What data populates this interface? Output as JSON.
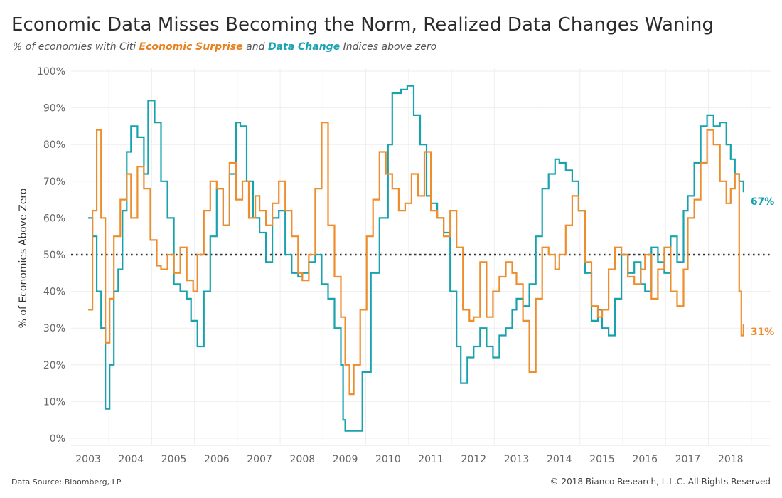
{
  "title": "Economic Data Misses Becoming the Norm, Realized Data Changes Waning",
  "subtitle": {
    "part1": "% of economies with Citi ",
    "highlight1": "Economic Surprise",
    "part2": " and ",
    "highlight2": "Data Change",
    "part3": " Indices above zero"
  },
  "footer": {
    "source": "Data Source: Bloomberg, LP",
    "copyright": "© 2018 Bianco Research, L.L.C. All Rights Reserved"
  },
  "colors": {
    "surprise": "#ee8d2c",
    "change": "#17a2ae",
    "grid": "#eeeeee",
    "refline": "#333333"
  },
  "chart_data": {
    "type": "line",
    "ylabel": "% of Economies Above Zero",
    "xlabel": "",
    "xlim": [
      2002.6,
      2018.95
    ],
    "ylim": [
      0,
      100
    ],
    "y_ticks": [
      0,
      10,
      20,
      30,
      40,
      50,
      60,
      70,
      80,
      90,
      100
    ],
    "y_tick_labels": [
      "0%",
      "10%",
      "20%",
      "30%",
      "40%",
      "50%",
      "60%",
      "70%",
      "80%",
      "90%",
      "100%"
    ],
    "x_ticks": [
      2003,
      2004,
      2005,
      2006,
      2007,
      2008,
      2009,
      2010,
      2011,
      2012,
      2013,
      2014,
      2015,
      2016,
      2017,
      2018
    ],
    "x_tick_labels": [
      "2003",
      "2004",
      "2005",
      "2006",
      "2007",
      "2008",
      "2009",
      "2010",
      "2011",
      "2012",
      "2013",
      "2014",
      "2015",
      "2016",
      "2017",
      "2018"
    ],
    "reference_line": {
      "y": 50,
      "style": "dotted"
    },
    "grid": true,
    "series": [
      {
        "name": "Economic Surprise",
        "end_label": "31%",
        "x": [
          2003.0,
          2003.1,
          2003.2,
          2003.3,
          2003.4,
          2003.5,
          2003.6,
          2003.75,
          2003.9,
          2004.0,
          2004.15,
          2004.3,
          2004.45,
          2004.6,
          2004.7,
          2004.85,
          2005.0,
          2005.15,
          2005.3,
          2005.45,
          2005.55,
          2005.7,
          2005.85,
          2006.0,
          2006.15,
          2006.3,
          2006.45,
          2006.6,
          2006.75,
          2006.9,
          2007.0,
          2007.15,
          2007.3,
          2007.45,
          2007.6,
          2007.75,
          2007.9,
          2008.0,
          2008.15,
          2008.3,
          2008.45,
          2008.6,
          2008.75,
          2008.9,
          2009.0,
          2009.1,
          2009.2,
          2009.35,
          2009.5,
          2009.65,
          2009.8,
          2009.95,
          2010.1,
          2010.25,
          2010.4,
          2010.55,
          2010.7,
          2010.85,
          2011.0,
          2011.15,
          2011.3,
          2011.45,
          2011.6,
          2011.75,
          2011.9,
          2012.0,
          2012.15,
          2012.3,
          2012.45,
          2012.6,
          2012.75,
          2012.9,
          2013.0,
          2013.15,
          2013.3,
          2013.45,
          2013.6,
          2013.75,
          2013.9,
          2014.0,
          2014.15,
          2014.3,
          2014.45,
          2014.6,
          2014.75,
          2014.9,
          2015.0,
          2015.15,
          2015.3,
          2015.45,
          2015.6,
          2015.75,
          2015.9,
          2016.0,
          2016.15,
          2016.3,
          2016.45,
          2016.6,
          2016.75,
          2016.9,
          2017.0,
          2017.15,
          2017.3,
          2017.45,
          2017.6,
          2017.75,
          2017.9,
          2018.0,
          2018.1,
          2018.2,
          2018.25,
          2018.3
        ],
        "y": [
          35,
          62,
          84,
          60,
          26,
          38,
          55,
          65,
          72,
          60,
          74,
          68,
          54,
          47,
          46,
          50,
          45,
          52,
          43,
          40,
          50,
          62,
          70,
          68,
          58,
          75,
          65,
          70,
          60,
          66,
          62,
          58,
          64,
          70,
          62,
          55,
          45,
          43,
          50,
          68,
          86,
          58,
          44,
          33,
          20,
          12,
          20,
          35,
          55,
          65,
          78,
          72,
          68,
          62,
          64,
          72,
          66,
          78,
          62,
          60,
          55,
          62,
          52,
          35,
          32,
          33,
          48,
          33,
          40,
          44,
          48,
          45,
          42,
          32,
          18,
          38,
          52,
          50,
          46,
          50,
          58,
          66,
          62,
          48,
          36,
          33,
          35,
          46,
          52,
          50,
          44,
          42,
          46,
          50,
          38,
          46,
          52,
          40,
          36,
          46,
          60,
          65,
          75,
          84,
          80,
          70,
          64,
          68,
          72,
          40,
          28,
          31
        ]
      },
      {
        "name": "Data Change",
        "end_label": "67%",
        "x": [
          2003.0,
          2003.1,
          2003.2,
          2003.3,
          2003.4,
          2003.5,
          2003.6,
          2003.7,
          2003.8,
          2003.9,
          2004.0,
          2004.15,
          2004.3,
          2004.4,
          2004.55,
          2004.7,
          2004.85,
          2005.0,
          2005.15,
          2005.3,
          2005.4,
          2005.55,
          2005.7,
          2005.85,
          2006.0,
          2006.15,
          2006.3,
          2006.45,
          2006.55,
          2006.7,
          2006.85,
          2007.0,
          2007.15,
          2007.3,
          2007.45,
          2007.6,
          2007.75,
          2007.9,
          2008.0,
          2008.15,
          2008.3,
          2008.45,
          2008.6,
          2008.75,
          2008.9,
          2008.95,
          2009.0,
          2009.2,
          2009.4,
          2009.6,
          2009.8,
          2010.0,
          2010.1,
          2010.3,
          2010.45,
          2010.6,
          2010.75,
          2010.9,
          2011.0,
          2011.15,
          2011.3,
          2011.45,
          2011.6,
          2011.7,
          2011.85,
          2012.0,
          2012.15,
          2012.3,
          2012.45,
          2012.6,
          2012.75,
          2012.9,
          2013.0,
          2013.15,
          2013.3,
          2013.45,
          2013.6,
          2013.75,
          2013.9,
          2014.0,
          2014.15,
          2014.3,
          2014.45,
          2014.6,
          2014.75,
          2014.9,
          2015.0,
          2015.15,
          2015.3,
          2015.45,
          2015.6,
          2015.75,
          2015.9,
          2016.0,
          2016.15,
          2016.3,
          2016.45,
          2016.6,
          2016.75,
          2016.9,
          2017.0,
          2017.15,
          2017.3,
          2017.45,
          2017.6,
          2017.75,
          2017.9,
          2018.0,
          2018.1,
          2018.2,
          2018.3
        ],
        "y": [
          60,
          55,
          40,
          30,
          8,
          20,
          40,
          46,
          62,
          78,
          85,
          82,
          72,
          92,
          86,
          70,
          60,
          42,
          40,
          38,
          32,
          25,
          40,
          55,
          68,
          58,
          72,
          86,
          85,
          70,
          60,
          56,
          48,
          60,
          62,
          50,
          45,
          44,
          45,
          48,
          50,
          42,
          38,
          30,
          20,
          5,
          2,
          2,
          18,
          45,
          60,
          80,
          94,
          95,
          96,
          88,
          80,
          66,
          64,
          60,
          56,
          40,
          25,
          15,
          22,
          25,
          30,
          25,
          22,
          28,
          30,
          35,
          38,
          36,
          42,
          55,
          68,
          72,
          76,
          75,
          73,
          70,
          62,
          45,
          32,
          35,
          30,
          28,
          38,
          50,
          45,
          48,
          42,
          40,
          52,
          48,
          45,
          55,
          48,
          62,
          66,
          75,
          85,
          88,
          85,
          86,
          80,
          76,
          72,
          70,
          67
        ]
      }
    ]
  }
}
